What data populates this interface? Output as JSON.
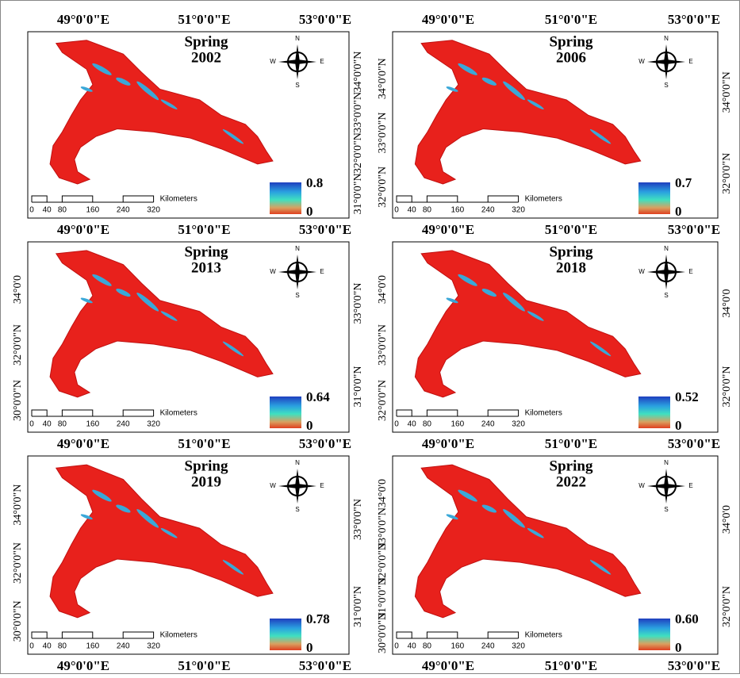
{
  "panels": [
    {
      "title": "Spring",
      "year": "2002",
      "legend_max": "0.8",
      "legend_min": "0",
      "lon_labels_top": [
        "49°0'0\"E",
        "51°0'0\"E",
        "53°0'0\"E"
      ],
      "lon_labels": [
        "49°0'0\"E",
        "51°0'0\"E",
        "53°0'0\"E"
      ],
      "lat_labels_left": [],
      "lat_labels_right": [
        "34°0'0\"N",
        "33°0'0\"N",
        "32°0'0\"N",
        "31°0'0\"N"
      ],
      "scale_labels": [
        "0",
        "40",
        "80",
        "160",
        "240",
        "320"
      ],
      "scale_unit": "Kilometers",
      "compass": [
        "N",
        "S",
        "E",
        "W"
      ]
    },
    {
      "title": "Spring",
      "year": "2006",
      "legend_max": "0.7",
      "legend_min": "0",
      "lon_labels_top": [
        "49°0'0\"E",
        "51°0'0\"E",
        "53°0'0\"E"
      ],
      "lon_labels": [
        "49°0'0\"E",
        "51°0'0\"E",
        "53°0'0\"E"
      ],
      "lat_labels_left": [
        "34°0'0\"N",
        "33°0'0\"N",
        "32°0'0\"N"
      ],
      "lat_labels_right": [
        "34°0'0\"N",
        "32°0'0\"N"
      ],
      "scale_labels": [
        "0",
        "40",
        "80",
        "160",
        "240",
        "320"
      ],
      "scale_unit": "Kilometers",
      "compass": [
        "N",
        "S",
        "E",
        "W"
      ]
    },
    {
      "title": "Spring",
      "year": "2013",
      "legend_max": "0.64",
      "legend_min": "0",
      "lon_labels": [
        "49°0'0\"E",
        "51°0'0\"E",
        "53°0'0\"E"
      ],
      "lat_labels_left": [
        "34°0'0",
        "32°0'0\"N",
        "30°0'0\"N"
      ],
      "lat_labels_right": [
        "33°0'0\"N",
        "31°0'0\"N"
      ],
      "scale_labels": [
        "0",
        "40",
        "80",
        "160",
        "240",
        "320"
      ],
      "scale_unit": "Kilometers",
      "compass": [
        "N",
        "S",
        "E",
        "W"
      ]
    },
    {
      "title": "Spring",
      "year": "2018",
      "legend_max": "0.52",
      "legend_min": "0",
      "lon_labels": [
        "49°0'0\"E",
        "51°0'0\"E",
        "53°0'0\"E"
      ],
      "lat_labels_left": [
        "34°0'0",
        "33°0'0\"N",
        "32°0'0\"N"
      ],
      "lat_labels_right": [
        "34°0'0",
        "32°0'0\"N"
      ],
      "scale_labels": [
        "0",
        "40",
        "80",
        "160",
        "240",
        "320"
      ],
      "scale_unit": "Kilometers",
      "compass": [
        "N",
        "S",
        "E",
        "W"
      ]
    },
    {
      "title": "Spring",
      "year": "2019",
      "legend_max": "0.78",
      "legend_min": "0",
      "lon_labels": [
        "49°0'0\"E",
        "51°0'0\"E",
        "53°0'0\"E"
      ],
      "lat_labels_left": [
        "34°0'0\"N",
        "32°0'0\"N",
        "30°0'0\"N"
      ],
      "lat_labels_right": [
        "33°0'0\"N",
        "31°0'0\"N"
      ],
      "scale_labels": [
        "0",
        "40",
        "80",
        "160",
        "240",
        "320"
      ],
      "scale_unit": "Kilometers",
      "compass": [
        "N",
        "S",
        "E",
        "W"
      ]
    },
    {
      "title": "Spring",
      "year": "2022",
      "legend_max": "0.60",
      "legend_min": "0",
      "lon_labels": [
        "49°0'0\"E",
        "51°0'0\"E",
        "53°0'0\"E"
      ],
      "lat_labels_left": [
        "34°0'0",
        "33°0'0\"N",
        "32°0'0\"N",
        "31°0'0\"N",
        "30°0'0\"N"
      ],
      "lat_labels_right": [
        "34°0'0",
        "32°0'0\"N"
      ],
      "scale_labels": [
        "0",
        "40",
        "80",
        "160",
        "240",
        "320"
      ],
      "scale_unit": "Kilometers",
      "compass": [
        "N",
        "S",
        "E",
        "W"
      ]
    }
  ]
}
